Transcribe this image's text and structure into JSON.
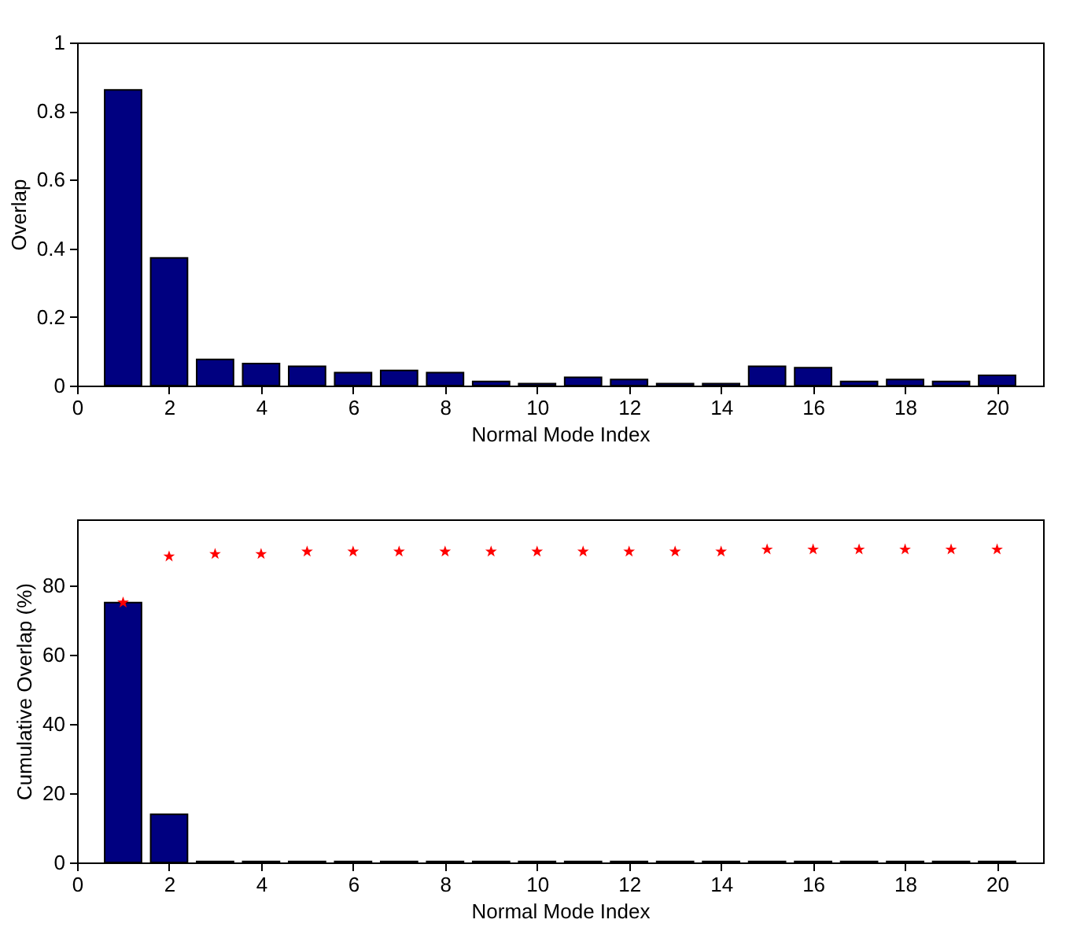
{
  "chart_data": [
    {
      "type": "bar",
      "xlabel": "Normal Mode Index",
      "ylabel": "Overlap",
      "x": [
        1,
        2,
        3,
        4,
        5,
        6,
        7,
        8,
        9,
        10,
        11,
        12,
        13,
        14,
        15,
        16,
        17,
        18,
        19,
        20
      ],
      "values": [
        0.862,
        0.372,
        0.076,
        0.064,
        0.056,
        0.038,
        0.044,
        0.038,
        0.012,
        0.006,
        0.024,
        0.018,
        0.006,
        0.006,
        0.056,
        0.052,
        0.012,
        0.018,
        0.012,
        0.03
      ],
      "color": "#000080",
      "xlim": [
        0,
        21
      ],
      "xticks": [
        0,
        2,
        4,
        6,
        8,
        10,
        12,
        14,
        16,
        18,
        20
      ],
      "ylim": [
        0,
        1
      ],
      "yticks": [
        0,
        0.2,
        0.4,
        0.6,
        0.8,
        1
      ]
    },
    {
      "type": "bar",
      "xlabel": "Normal Mode Index",
      "ylabel": "Cumulative Overlap (%)",
      "x": [
        1,
        2,
        3,
        4,
        5,
        6,
        7,
        8,
        9,
        10,
        11,
        12,
        13,
        14,
        15,
        16,
        17,
        18,
        19,
        20
      ],
      "series": [
        {
          "type": "bar",
          "color": "#000080",
          "values": [
            75,
            13.9,
            0.3,
            0.3,
            0.3,
            0.3,
            0.3,
            0.3,
            0.3,
            0.3,
            0.3,
            0.3,
            0.3,
            0.3,
            0.3,
            0.3,
            0.3,
            0.3,
            0.3,
            0.3
          ]
        },
        {
          "type": "scatter",
          "color": "#ff0000",
          "marker": "star",
          "values": [
            75,
            88.3,
            89,
            89,
            89.7,
            89.7,
            89.7,
            89.7,
            89.7,
            89.7,
            89.7,
            89.7,
            89.7,
            89.7,
            90.3,
            90.3,
            90.3,
            90.3,
            90.3,
            90.3
          ]
        }
      ],
      "xlim": [
        0,
        21
      ],
      "xticks": [
        0,
        2,
        4,
        6,
        8,
        10,
        12,
        14,
        16,
        18,
        20
      ],
      "ylim": [
        0,
        99
      ],
      "yticks": [
        0,
        20,
        40,
        60,
        80
      ]
    }
  ]
}
